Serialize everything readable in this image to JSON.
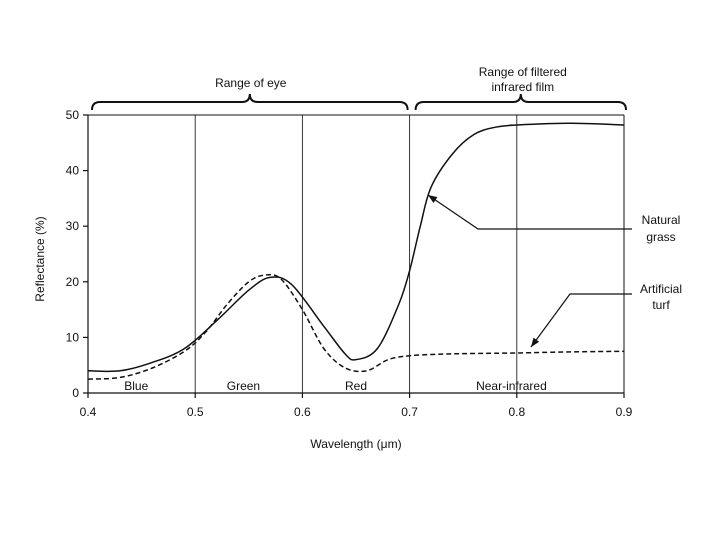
{
  "chart_data": {
    "type": "line",
    "xlabel": "Wavelength (μm)",
    "ylabel": "Reflectance (%)",
    "xlim": [
      0.4,
      0.9
    ],
    "ylim": [
      0,
      50
    ],
    "x_ticks": [
      "0.4",
      "0.5",
      "0.6",
      "0.7",
      "0.8",
      "0.9"
    ],
    "y_ticks": [
      "0",
      "10",
      "20",
      "30",
      "40",
      "50"
    ],
    "vertical_gridlines": [
      0.5,
      0.6,
      0.7,
      0.8
    ],
    "bands": [
      {
        "label": "Blue",
        "x": 0.445
      },
      {
        "label": "Green",
        "x": 0.545
      },
      {
        "label": "Red",
        "x": 0.65
      },
      {
        "label": "Near-infrared",
        "x": 0.795
      }
    ],
    "ranges": [
      {
        "label": "Range of eye",
        "from": 0.4,
        "to": 0.7
      },
      {
        "label_lines": [
          "Range of filtered",
          "infrared film"
        ],
        "from": 0.7,
        "to": 0.9
      }
    ],
    "series": [
      {
        "name": "Natural grass",
        "label_lines": [
          "Natural",
          "grass"
        ],
        "style": "solid",
        "x": [
          0.4,
          0.43,
          0.46,
          0.49,
          0.52,
          0.55,
          0.57,
          0.59,
          0.62,
          0.64,
          0.65,
          0.67,
          0.69,
          0.7,
          0.71,
          0.72,
          0.74,
          0.76,
          0.78,
          0.8,
          0.85,
          0.9
        ],
        "y": [
          4,
          4,
          5.5,
          8,
          13,
          18.5,
          20.8,
          19.5,
          12,
          7,
          6,
          8,
          16,
          22,
          30,
          37,
          43,
          46.5,
          47.8,
          48.2,
          48.5,
          48.2
        ]
      },
      {
        "name": "Artificial turf",
        "label_lines": [
          "Artificial",
          "turf"
        ],
        "style": "dashed",
        "x": [
          0.4,
          0.43,
          0.46,
          0.49,
          0.51,
          0.53,
          0.55,
          0.565,
          0.58,
          0.6,
          0.62,
          0.64,
          0.66,
          0.68,
          0.7,
          0.73,
          0.76,
          0.8,
          0.85,
          0.9
        ],
        "y": [
          2.5,
          2.8,
          4.5,
          7.5,
          11,
          16,
          20,
          21.2,
          20.5,
          15,
          8,
          4.5,
          4,
          6,
          6.7,
          7,
          7.1,
          7.2,
          7.4,
          7.5
        ]
      }
    ]
  }
}
